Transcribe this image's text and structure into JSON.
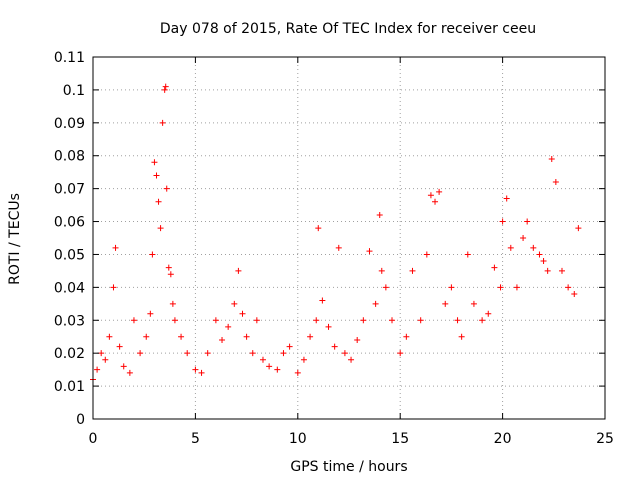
{
  "chart_data": {
    "type": "scatter",
    "title": "Day 078 of 2015, Rate Of TEC Index for receiver ceeu",
    "xlabel": "GPS time / hours",
    "ylabel": "ROTI / TECUs",
    "xlim": [
      0,
      25
    ],
    "ylim": [
      0,
      0.11
    ],
    "xticks": [
      0,
      5,
      10,
      15,
      20,
      25
    ],
    "xtick_labels": [
      "0",
      "5",
      "10",
      "15",
      "20",
      "25"
    ],
    "yticks": [
      0,
      0.01,
      0.02,
      0.03,
      0.04,
      0.05,
      0.06,
      0.07,
      0.08,
      0.09,
      0.1,
      0.11
    ],
    "ytick_labels": [
      "0",
      "0.01",
      "0.02",
      "0.03",
      "0.04",
      "0.05",
      "0.06",
      "0.07",
      "0.08",
      "0.09",
      "0.1",
      "0.11"
    ],
    "grid": true,
    "marker": "+",
    "series": [
      {
        "name": "ROTI",
        "color": "#ff0000",
        "x": [
          0.0,
          0.2,
          0.4,
          0.6,
          0.8,
          1.0,
          1.1,
          1.3,
          1.5,
          1.8,
          2.0,
          2.3,
          2.6,
          2.8,
          2.9,
          3.0,
          3.1,
          3.2,
          3.3,
          3.4,
          3.5,
          3.55,
          3.6,
          3.7,
          3.8,
          3.9,
          4.0,
          4.3,
          4.6,
          5.0,
          5.3,
          5.6,
          6.0,
          6.3,
          6.6,
          6.9,
          7.1,
          7.3,
          7.5,
          7.8,
          8.0,
          8.3,
          8.6,
          9.0,
          9.3,
          9.6,
          10.0,
          10.3,
          10.6,
          10.9,
          11.0,
          11.2,
          11.5,
          11.8,
          12.0,
          12.3,
          12.6,
          12.9,
          13.2,
          13.5,
          13.8,
          14.0,
          14.1,
          14.3,
          14.6,
          15.0,
          15.3,
          15.6,
          16.0,
          16.3,
          16.5,
          16.7,
          16.9,
          17.2,
          17.5,
          17.8,
          18.0,
          18.3,
          18.6,
          19.0,
          19.3,
          19.6,
          19.9,
          20.0,
          20.2,
          20.4,
          20.7,
          21.0,
          21.2,
          21.5,
          21.8,
          22.0,
          22.2,
          22.4,
          22.6,
          22.9,
          23.2,
          23.5,
          23.7
        ],
        "y": [
          0.012,
          0.015,
          0.02,
          0.018,
          0.025,
          0.04,
          0.052,
          0.022,
          0.016,
          0.014,
          0.03,
          0.02,
          0.025,
          0.032,
          0.05,
          0.078,
          0.074,
          0.066,
          0.058,
          0.09,
          0.1,
          0.101,
          0.07,
          0.046,
          0.044,
          0.035,
          0.03,
          0.025,
          0.02,
          0.015,
          0.014,
          0.02,
          0.03,
          0.024,
          0.028,
          0.035,
          0.045,
          0.032,
          0.025,
          0.02,
          0.03,
          0.018,
          0.016,
          0.015,
          0.02,
          0.022,
          0.014,
          0.018,
          0.025,
          0.03,
          0.058,
          0.036,
          0.028,
          0.022,
          0.052,
          0.02,
          0.018,
          0.024,
          0.03,
          0.051,
          0.035,
          0.062,
          0.045,
          0.04,
          0.03,
          0.02,
          0.025,
          0.045,
          0.03,
          0.05,
          0.068,
          0.066,
          0.069,
          0.035,
          0.04,
          0.03,
          0.025,
          0.05,
          0.035,
          0.03,
          0.032,
          0.046,
          0.04,
          0.06,
          0.067,
          0.052,
          0.04,
          0.055,
          0.06,
          0.052,
          0.05,
          0.048,
          0.045,
          0.079,
          0.072,
          0.045,
          0.04,
          0.038,
          0.058
        ]
      }
    ]
  }
}
